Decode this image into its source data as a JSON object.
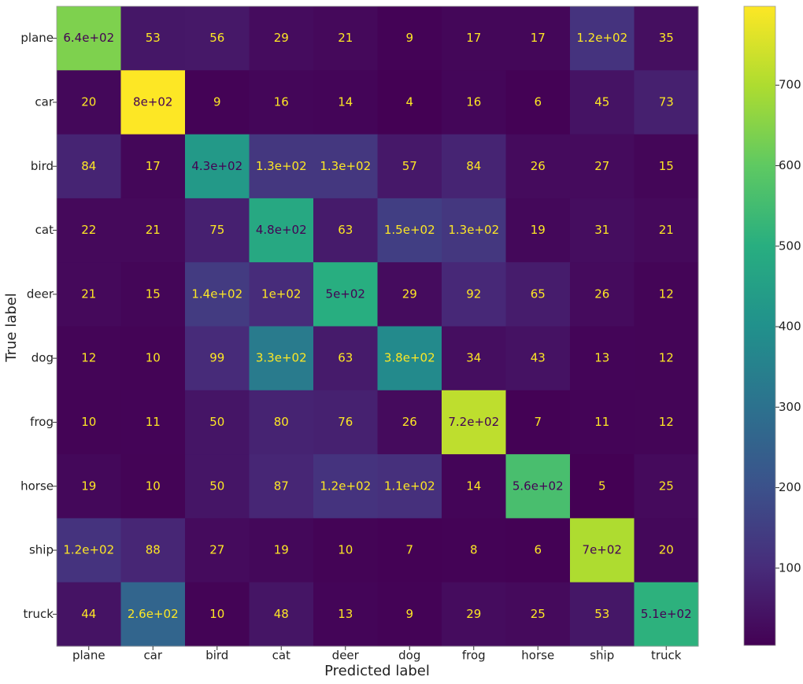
{
  "chart_data": {
    "type": "heatmap",
    "xlabel": "Predicted label",
    "ylabel": "True label",
    "x_categories": [
      "plane",
      "car",
      "bird",
      "cat",
      "deer",
      "dog",
      "frog",
      "horse",
      "ship",
      "truck"
    ],
    "y_categories": [
      "plane",
      "car",
      "bird",
      "cat",
      "deer",
      "dog",
      "frog",
      "horse",
      "ship",
      "truck"
    ],
    "values": [
      [
        640,
        53,
        56,
        29,
        21,
        9,
        17,
        17,
        120,
        35
      ],
      [
        20,
        798,
        9,
        16,
        14,
        4,
        16,
        6,
        45,
        73
      ],
      [
        84,
        17,
        430,
        130,
        130,
        57,
        84,
        26,
        27,
        15
      ],
      [
        22,
        21,
        75,
        480,
        63,
        150,
        130,
        19,
        31,
        21
      ],
      [
        21,
        15,
        140,
        100,
        500,
        29,
        92,
        65,
        26,
        12
      ],
      [
        12,
        10,
        99,
        330,
        63,
        380,
        34,
        43,
        13,
        12
      ],
      [
        10,
        11,
        50,
        80,
        76,
        26,
        720,
        7,
        11,
        12
      ],
      [
        19,
        10,
        50,
        87,
        120,
        110,
        14,
        560,
        5,
        25
      ],
      [
        120,
        88,
        27,
        19,
        10,
        7,
        8,
        6,
        700,
        20
      ],
      [
        44,
        260,
        10,
        48,
        13,
        9,
        29,
        25,
        53,
        510
      ]
    ],
    "value_labels": [
      [
        "6.4e+02",
        "53",
        "56",
        "29",
        "21",
        "9",
        "17",
        "17",
        "1.2e+02",
        "35"
      ],
      [
        "20",
        "8e+02",
        "9",
        "16",
        "14",
        "4",
        "16",
        "6",
        "45",
        "73"
      ],
      [
        "84",
        "17",
        "4.3e+02",
        "1.3e+02",
        "1.3e+02",
        "57",
        "84",
        "26",
        "27",
        "15"
      ],
      [
        "22",
        "21",
        "75",
        "4.8e+02",
        "63",
        "1.5e+02",
        "1.3e+02",
        "19",
        "31",
        "21"
      ],
      [
        "21",
        "15",
        "1.4e+02",
        "1e+02",
        "5e+02",
        "29",
        "92",
        "65",
        "26",
        "12"
      ],
      [
        "12",
        "10",
        "99",
        "3.3e+02",
        "63",
        "3.8e+02",
        "34",
        "43",
        "13",
        "12"
      ],
      [
        "10",
        "11",
        "50",
        "80",
        "76",
        "26",
        "7.2e+02",
        "7",
        "11",
        "12"
      ],
      [
        "19",
        "10",
        "50",
        "87",
        "1.2e+02",
        "1.1e+02",
        "14",
        "5.6e+02",
        "5",
        "25"
      ],
      [
        "1.2e+02",
        "88",
        "27",
        "19",
        "10",
        "7",
        "8",
        "6",
        "7e+02",
        "20"
      ],
      [
        "44",
        "2.6e+02",
        "10",
        "48",
        "13",
        "9",
        "29",
        "25",
        "53",
        "5.1e+02"
      ]
    ],
    "colormap": "viridis",
    "clim": [
      4,
      798
    ],
    "cticks": [
      100,
      200,
      300,
      400,
      500,
      600,
      700
    ]
  }
}
